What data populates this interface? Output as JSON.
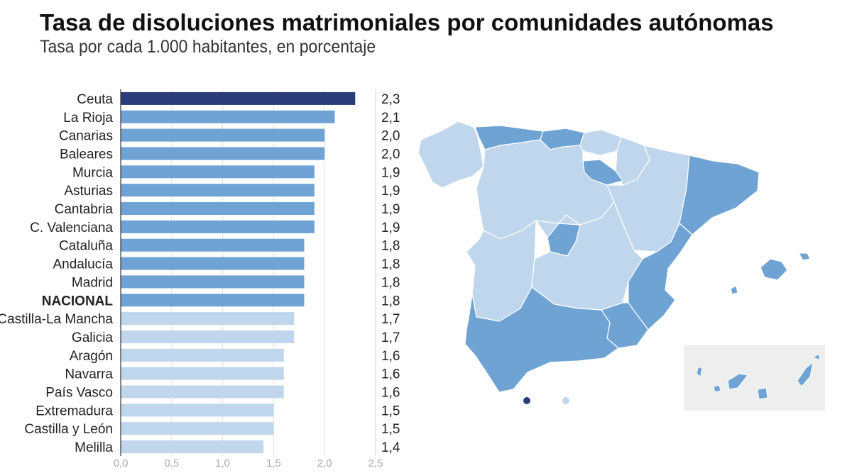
{
  "title": "Tasa de disoluciones matrimoniales por comunidades autónomas",
  "subtitle": "Tasa por cada 1.000 habitantes, en porcentaje",
  "colors": {
    "highlight": "#2a3d78",
    "mid": "#6fa3d4",
    "light": "#bfd6ec",
    "inset_bg": "#eeeeee"
  },
  "chart_data": {
    "type": "bar",
    "orientation": "horizontal",
    "categories": [
      "Ceuta",
      "La Rioja",
      "Canarias",
      "Baleares",
      "Murcia",
      "Asturias",
      "Cantabria",
      "C. Valenciana",
      "Cataluña",
      "Andalucía",
      "Madrid",
      "NACIONAL",
      "Castilla-La Mancha",
      "Galicia",
      "Aragón",
      "Navarra",
      "País Vasco",
      "Extremadura",
      "Castilla y León",
      "Melilla"
    ],
    "values": [
      2.3,
      2.1,
      2.0,
      2.0,
      1.9,
      1.9,
      1.9,
      1.9,
      1.8,
      1.8,
      1.8,
      1.8,
      1.7,
      1.7,
      1.6,
      1.6,
      1.6,
      1.5,
      1.5,
      1.4
    ],
    "value_labels": [
      "2,3",
      "2,1",
      "2,0",
      "2,0",
      "1,9",
      "1,9",
      "1,9",
      "1,9",
      "1,8",
      "1,8",
      "1,8",
      "1,8",
      "1,7",
      "1,7",
      "1,6",
      "1,6",
      "1,6",
      "1,5",
      "1,5",
      "1,4"
    ],
    "bar_colors": [
      "highlight",
      "mid",
      "mid",
      "mid",
      "mid",
      "mid",
      "mid",
      "mid",
      "mid",
      "mid",
      "mid",
      "mid",
      "light",
      "light",
      "light",
      "light",
      "light",
      "light",
      "light",
      "light"
    ],
    "bold_categories": [
      "NACIONAL"
    ],
    "xlim": [
      0,
      2.5
    ],
    "xticks": [
      0,
      0.5,
      1.0,
      1.5,
      2.0,
      2.5
    ],
    "xtick_labels": [
      "0,0",
      "0,5",
      "1,0",
      "1,5",
      "2,0",
      "2,5"
    ],
    "grid": true
  },
  "map": {
    "description_legend": "choropleth",
    "marker_colors": [
      "highlight",
      "light"
    ]
  }
}
